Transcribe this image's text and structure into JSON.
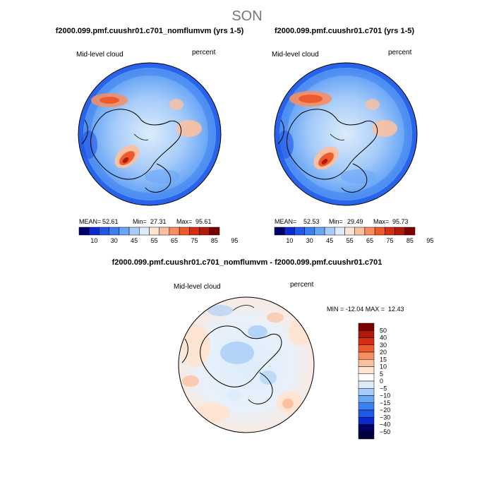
{
  "page_title": "SON",
  "colors": {
    "scale12": [
      "#000066",
      "#0a2acd",
      "#1f57e8",
      "#3b7ff0",
      "#6aa6f6",
      "#a7ccf9",
      "#ddecfb",
      "#fde4d3",
      "#fbc0a0",
      "#f68e62",
      "#ed5a2e",
      "#d62e12",
      "#b01a0a",
      "#7a0000"
    ],
    "land": "#000000"
  },
  "chart_data": [
    {
      "type": "heatmap",
      "title": "f2000.099.pmf.cuushr01.c701_nomflumvm (yrs 1-5)",
      "variable": "Mid-level cloud",
      "units": "percent",
      "stats": {
        "mean_label": "MEAN=",
        "mean": "52.61",
        "min_label": "Min=",
        "min": "27.31",
        "max_label": "Max=",
        "max": "95.61"
      },
      "levels": [
        10,
        30,
        45,
        55,
        65,
        75,
        85,
        95
      ],
      "colorbar_ticks": [
        "10",
        "30",
        "45",
        "55",
        "65",
        "75",
        "85",
        "95"
      ],
      "colorbar_bins": 14
    },
    {
      "type": "heatmap",
      "title": "f2000.099.pmf.cuushr01.c701 (yrs 1-5)",
      "variable": "Mid-level cloud",
      "units": "percent",
      "stats": {
        "mean_label": "MEAN=",
        "mean": "52.53",
        "min_label": "Min=",
        "min": "29.49",
        "max_label": "Max=",
        "max": "95.73"
      },
      "levels": [
        10,
        30,
        45,
        55,
        65,
        75,
        85,
        95
      ],
      "colorbar_ticks": [
        "10",
        "30",
        "45",
        "55",
        "65",
        "75",
        "85",
        "95"
      ],
      "colorbar_bins": 14
    },
    {
      "type": "heatmap",
      "title": "f2000.099.pmf.cuushr01.c701_nomflumvm - f2000.099.pmf.cuushr01.c701",
      "variable": "Mid-level cloud",
      "units": "percent",
      "minmax_text": "MIN = -12.04 MAX =  12.43",
      "min": -12.04,
      "max": 12.43,
      "colorbar_ticks": [
        "50",
        "40",
        "30",
        "20",
        "15",
        "10",
        "5",
        "0",
        "−5",
        "−10",
        "−15",
        "−20",
        "−30",
        "−40",
        "−50"
      ]
    }
  ]
}
